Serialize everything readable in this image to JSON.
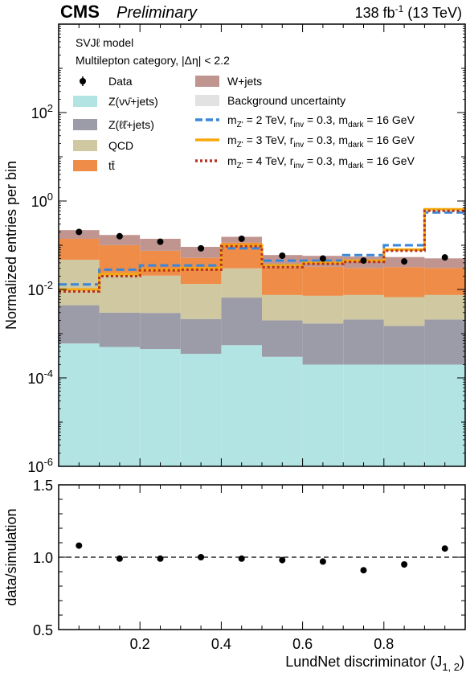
{
  "header": {
    "experiment": "CMS",
    "status": "Preliminary",
    "luminosity": "138 fb",
    "lumi_exp": "-1",
    "energy": "(13 TeV)"
  },
  "annotations": {
    "model": "SVJℓ model",
    "category": "Multilepton category,  |Δη| < 2.2"
  },
  "axes": {
    "ylabel_main": "Normalized entries per bin",
    "ylabel_ratio": "data/simulation",
    "xlabel": "LundNet discriminator (J",
    "xlabel_sub": "1, 2",
    "xlabel_close": ")",
    "main_yticks": [
      {
        "base": "10",
        "exp": "-6"
      },
      {
        "base": "10",
        "exp": "-4"
      },
      {
        "base": "10",
        "exp": "-2"
      },
      {
        "base": "10",
        "exp": "0"
      },
      {
        "base": "10",
        "exp": "2"
      }
    ],
    "ratio_yticks": [
      "0.5",
      "1.0",
      "1.5"
    ],
    "xticks": [
      "0.2",
      "0.4",
      "0.6",
      "0.8"
    ]
  },
  "legend": {
    "data": "Data",
    "znunu": "Z(νν̄+jets)",
    "zll": "Z(ℓℓ̄+jets)",
    "qcd": "QCD",
    "ttbar": "tt̄",
    "wjets": "W+jets",
    "bkg_unc": "Background uncertainty",
    "sig_prefix": "m",
    "sig_sub_z": "Z'",
    "sig2_mass": " = 2 TeV, r",
    "sig3_mass": " = 3 TeV, r",
    "sig4_mass": " = 4 TeV, r",
    "sig_sub_inv": "inv",
    "sig_mid": " = 0.3, m",
    "sig_sub_dark": "dark",
    "sig_end": " = 16 GeV"
  },
  "colors": {
    "znunu": "#b2e4e4",
    "zll": "#9c9ca8",
    "qcd": "#cfc8a0",
    "ttbar": "#ee8c48",
    "wjets": "#c09590",
    "bkg_unc": "#e2e2e2",
    "sig2": "#3a86d8",
    "sig3": "#f5a90e",
    "sig4": "#b8311e"
  },
  "chart_data": [
    {
      "type": "bar",
      "stacked": true,
      "log_y": true,
      "xlim": [
        0,
        1
      ],
      "ylim": [
        1e-06,
        10000
      ],
      "bin_edges": [
        0,
        0.1,
        0.2,
        0.3,
        0.4,
        0.5,
        0.6,
        0.7,
        0.8,
        0.9,
        1.0
      ],
      "series": [
        {
          "name": "Z(νν̄+jets)",
          "key": "znunu",
          "values": [
            0.0006,
            0.0005,
            0.00045,
            0.00035,
            0.00055,
            0.0003,
            0.0002,
            0.0002,
            0.0002,
            0.0002
          ]
        },
        {
          "name": "Z(ℓℓ̄+jets)",
          "key": "zll",
          "values": [
            0.0038,
            0.0025,
            0.0025,
            0.0018,
            0.006,
            0.0017,
            0.0015,
            0.0019,
            0.0013,
            0.0019
          ]
        },
        {
          "name": "QCD",
          "key": "qcd",
          "values": [
            0.0426,
            0.0205,
            0.0176,
            0.0112,
            0.0235,
            0.0055,
            0.0055,
            0.0054,
            0.0052,
            0.0054
          ]
        },
        {
          "name": "tt̄",
          "key": "ttbar",
          "values": [
            0.093,
            0.077,
            0.0544,
            0.0385,
            0.085,
            0.0245,
            0.0253,
            0.023,
            0.0253,
            0.023
          ]
        },
        {
          "name": "W+jets",
          "key": "wjets",
          "values": [
            0.08,
            0.07,
            0.065,
            0.04,
            0.04,
            0.028,
            0.025,
            0.025,
            0.022,
            0.02
          ]
        }
      ],
      "data_points": {
        "x": [
          0.05,
          0.15,
          0.25,
          0.35,
          0.45,
          0.55,
          0.65,
          0.75,
          0.85,
          0.95
        ],
        "y": [
          0.2,
          0.16,
          0.12,
          0.085,
          0.14,
          0.058,
          0.05,
          0.045,
          0.043,
          0.053
        ]
      },
      "signals": [
        {
          "key": "sig2",
          "style": "dashed",
          "values": [
            0.013,
            0.028,
            0.035,
            0.035,
            0.085,
            0.045,
            0.045,
            0.06,
            0.1,
            0.55
          ]
        },
        {
          "key": "sig3",
          "style": "solid",
          "values": [
            0.01,
            0.022,
            0.028,
            0.03,
            0.1,
            0.035,
            0.04,
            0.045,
            0.08,
            0.65
          ]
        },
        {
          "key": "sig4",
          "style": "dotted",
          "values": [
            0.009,
            0.02,
            0.027,
            0.028,
            0.095,
            0.032,
            0.038,
            0.042,
            0.075,
            0.6
          ]
        }
      ]
    },
    {
      "type": "scatter",
      "xlim": [
        0,
        1
      ],
      "ylim": [
        0.5,
        1.5
      ],
      "reference_line": 1.0,
      "x": [
        0.05,
        0.15,
        0.25,
        0.35,
        0.45,
        0.55,
        0.65,
        0.75,
        0.85,
        0.95
      ],
      "y": [
        1.08,
        0.99,
        0.99,
        1.0,
        0.99,
        0.98,
        0.97,
        0.91,
        0.95,
        1.06
      ]
    }
  ]
}
